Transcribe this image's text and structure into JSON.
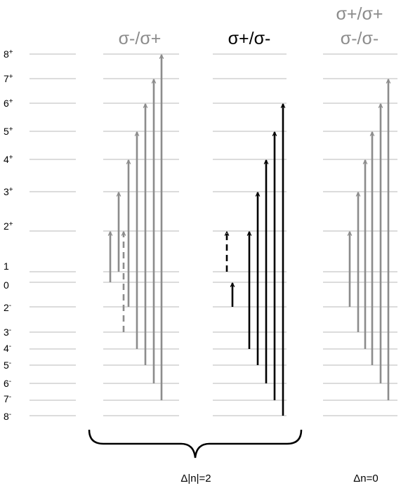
{
  "levels": [
    {
      "n": "8",
      "sign": "+"
    },
    {
      "n": "7",
      "sign": "+"
    },
    {
      "n": "6",
      "sign": "+"
    },
    {
      "n": "5",
      "sign": "+"
    },
    {
      "n": "4",
      "sign": "+"
    },
    {
      "n": "3",
      "sign": "+"
    },
    {
      "n": "2",
      "sign": "+"
    },
    {
      "n": "1",
      "sign": ""
    },
    {
      "n": "0",
      "sign": ""
    },
    {
      "n": "2",
      "sign": "-"
    },
    {
      "n": "3",
      "sign": "-"
    },
    {
      "n": "4",
      "sign": "-"
    },
    {
      "n": "5",
      "sign": "-"
    },
    {
      "n": "6",
      "sign": "-"
    },
    {
      "n": "7",
      "sign": "-"
    },
    {
      "n": "8",
      "sign": "-"
    }
  ],
  "groups": [
    {
      "title_lines": [
        "σ-/σ+"
      ],
      "color": "#8c8c8c",
      "transitions": [
        {
          "from": "0",
          "to": "2+",
          "style": "solid"
        },
        {
          "from": "1",
          "to": "3+",
          "style": "solid"
        },
        {
          "from": "3-",
          "to": "2+",
          "style": "dashed"
        },
        {
          "from": "2-",
          "to": "4+",
          "style": "solid"
        },
        {
          "from": "4-",
          "to": "5+",
          "style": "solid"
        },
        {
          "from": "5-",
          "to": "6+",
          "style": "solid"
        },
        {
          "from": "6-",
          "to": "7+",
          "style": "solid"
        },
        {
          "from": "7-",
          "to": "8+",
          "style": "solid"
        }
      ]
    },
    {
      "title_lines": [
        "σ+/σ-"
      ],
      "color": "#000000",
      "transitions": [
        {
          "from": "1",
          "to": "2+",
          "style": "dashed"
        },
        {
          "from": "2-",
          "to": "0",
          "style": "solid"
        },
        {
          "from": "4-",
          "to": "2+",
          "style": "solid"
        },
        {
          "from": "5-",
          "to": "3+",
          "style": "solid"
        },
        {
          "from": "6-",
          "to": "4+",
          "style": "solid"
        },
        {
          "from": "7-",
          "to": "5+",
          "style": "solid"
        },
        {
          "from": "8-",
          "to": "6+",
          "style": "solid"
        }
      ]
    },
    {
      "title_lines": [
        "σ+/σ+",
        "σ-/σ-"
      ],
      "color": "#8c8c8c",
      "transitions": [
        {
          "from": "2-",
          "to": "2+",
          "style": "solid"
        },
        {
          "from": "3-",
          "to": "3+",
          "style": "solid"
        },
        {
          "from": "4-",
          "to": "4+",
          "style": "solid"
        },
        {
          "from": "5-",
          "to": "5+",
          "style": "solid"
        },
        {
          "from": "6-",
          "to": "6+",
          "style": "solid"
        },
        {
          "from": "7-",
          "to": "7+",
          "style": "solid"
        }
      ]
    }
  ],
  "footer": {
    "brace_label": "Δ|n|=2",
    "right_label": "Δn=0"
  }
}
